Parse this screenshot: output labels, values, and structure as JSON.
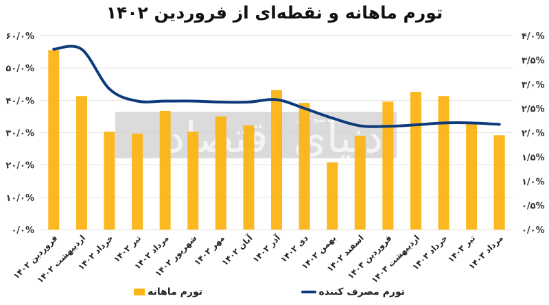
{
  "title": "تورم ماهانه و نقطه‌ای از فروردین ۱۴۰۲",
  "colors": {
    "bar": "#fbb415",
    "line": "#0d3a7a",
    "grid": "#e3e3e3",
    "watermark": "#cfcfcf"
  },
  "legend": {
    "bar_label": "تورم ماهانه",
    "line_label": "تورم مصرف کننده"
  },
  "watermark": {
    "text": "دنیای اقتصاد",
    "subtext": "روزنامه صبح ایران"
  },
  "chart_data": {
    "type": "bar+line",
    "title": "تورم ماهانه و نقطه‌ای از فروردین ۱۴۰۲",
    "categories": [
      "فروردین ۱۴۰۲",
      "اردیبهشت ۱۴۰۲",
      "خرداد ۱۴۰۲",
      "تیر ۱۴۰۲",
      "مرداد ۱۴۰۲",
      "شهریور ۱۴۰۲",
      "مهر ۱۴۰۲",
      "آبان ۱۴۰۲",
      "آذر ۱۴۰۲",
      "دی ۱۴۰۲",
      "بهمن ۱۴۰۲",
      "اسفند ۱۴۰۲",
      "فروردین ۱۴۰۳",
      "اردیبهشت ۱۴۰۳",
      "خرداد ۱۴۰۳",
      "تیر ۱۴۰۳",
      "مرداد ۱۴۰۳"
    ],
    "series": [
      {
        "name": "تورم ماهانه",
        "type": "bar",
        "axis": "left",
        "values": [
          55.5,
          41.3,
          30.3,
          29.7,
          36.7,
          30.3,
          35.0,
          32.2,
          43.2,
          39.2,
          20.8,
          29.0,
          39.6,
          42.6,
          41.3,
          32.8,
          29.2
        ]
      },
      {
        "name": "تورم مصرف کننده",
        "type": "line",
        "axis": "right",
        "values": [
          3.72,
          3.72,
          2.9,
          2.65,
          2.65,
          2.65,
          2.63,
          2.63,
          2.68,
          2.5,
          2.3,
          2.14,
          2.13,
          2.16,
          2.2,
          2.2,
          2.17
        ]
      }
    ],
    "y_left": {
      "ylim": [
        0,
        60
      ],
      "ticks": [
        "۰/۰%",
        "۱۰/۰%",
        "۲۰/۰%",
        "۳۰/۰%",
        "۴۰/۰%",
        "۵۰/۰%",
        "۶۰/۰%"
      ]
    },
    "y_right": {
      "ylim": [
        0,
        4
      ],
      "ticks": [
        "۰/۰%",
        "۰/۵%",
        "۱/۰%",
        "۱/۵%",
        "۲/۰%",
        "۲/۵%",
        "۳/۰%",
        "۳/۵%",
        "۴/۰%"
      ]
    },
    "grid": true,
    "legend_position": "bottom",
    "xlabel": "",
    "ylabel": ""
  }
}
